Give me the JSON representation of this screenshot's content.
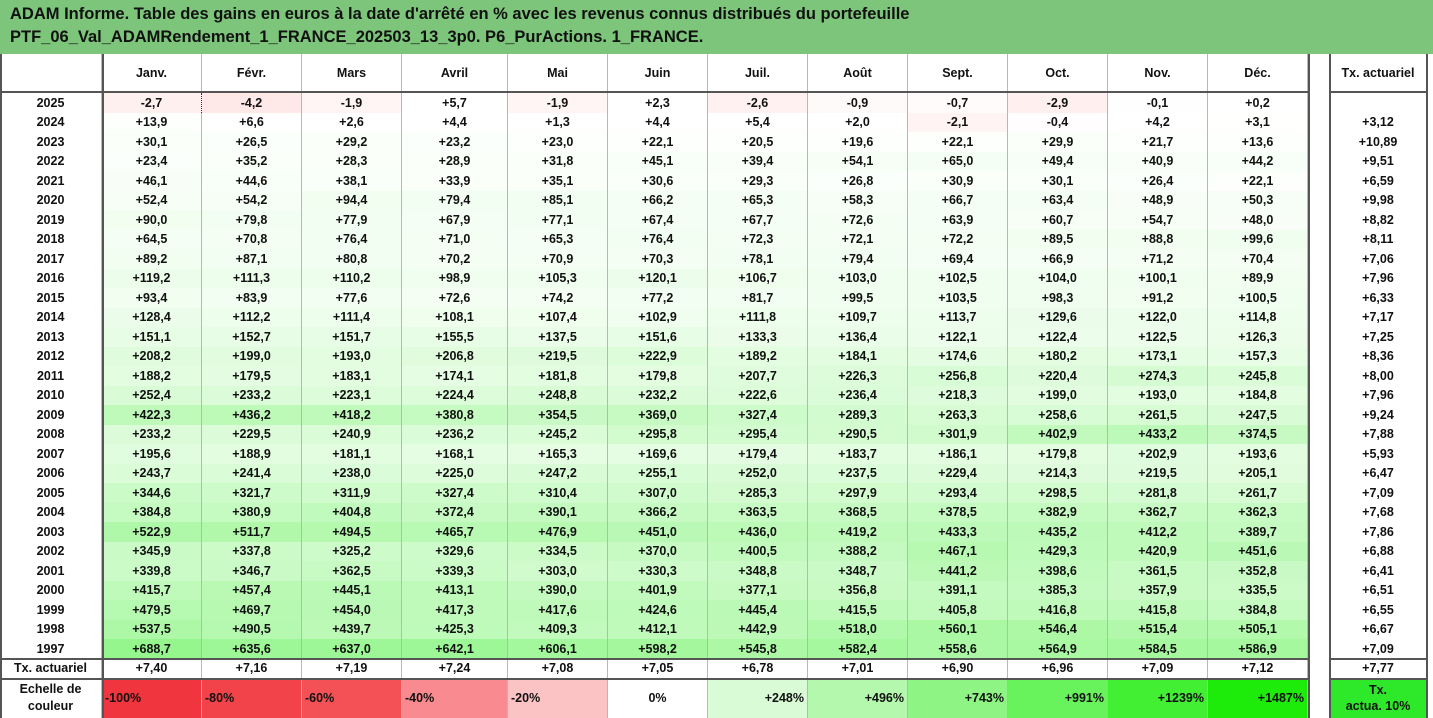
{
  "title": {
    "line1": "ADAM Informe. Table des gains en euros à la date d'arrêté en % avec les revenus connus distribués du portefeuille",
    "line2": "PTF_06_Val_ADAMRendement_1_FRANCE_202503_13_3p0. P6_PurActions. 1_FRANCE."
  },
  "months": [
    "Janv.",
    "Févr.",
    "Mars",
    "Avril",
    "Mai",
    "Juin",
    "Juil.",
    "Août",
    "Sept.",
    "Oct.",
    "Nov.",
    "Déc."
  ],
  "actuarial_header": "Tx. actuariel",
  "rows": [
    {
      "year": "2025",
      "values": [
        "-2,7",
        "-4,2",
        "-1,9",
        "+5,7",
        "-1,9",
        "+2,3",
        "-2,6",
        "-0,9",
        "-0,7",
        "-2,9",
        "-0,1",
        "+0,2"
      ],
      "rate": ""
    },
    {
      "year": "2024",
      "values": [
        "+13,9",
        "+6,6",
        "+2,6",
        "+4,4",
        "+1,3",
        "+4,4",
        "+5,4",
        "+2,0",
        "-2,1",
        "-0,4",
        "+4,2",
        "+3,1"
      ],
      "rate": "+3,12"
    },
    {
      "year": "2023",
      "values": [
        "+30,1",
        "+26,5",
        "+29,2",
        "+23,2",
        "+23,0",
        "+22,1",
        "+20,5",
        "+19,6",
        "+22,1",
        "+29,9",
        "+21,7",
        "+13,6"
      ],
      "rate": "+10,89"
    },
    {
      "year": "2022",
      "values": [
        "+23,4",
        "+35,2",
        "+28,3",
        "+28,9",
        "+31,8",
        "+45,1",
        "+39,4",
        "+54,1",
        "+65,0",
        "+49,4",
        "+40,9",
        "+44,2"
      ],
      "rate": "+9,51"
    },
    {
      "year": "2021",
      "values": [
        "+46,1",
        "+44,6",
        "+38,1",
        "+33,9",
        "+35,1",
        "+30,6",
        "+29,3",
        "+26,8",
        "+30,9",
        "+30,1",
        "+26,4",
        "+22,1"
      ],
      "rate": "+6,59"
    },
    {
      "year": "2020",
      "values": [
        "+52,4",
        "+54,2",
        "+94,4",
        "+79,4",
        "+85,1",
        "+66,2",
        "+65,3",
        "+58,3",
        "+66,7",
        "+63,4",
        "+48,9",
        "+50,3"
      ],
      "rate": "+9,98"
    },
    {
      "year": "2019",
      "values": [
        "+90,0",
        "+79,8",
        "+77,9",
        "+67,9",
        "+77,1",
        "+67,4",
        "+67,7",
        "+72,6",
        "+63,9",
        "+60,7",
        "+54,7",
        "+48,0"
      ],
      "rate": "+8,82"
    },
    {
      "year": "2018",
      "values": [
        "+64,5",
        "+70,8",
        "+76,4",
        "+71,0",
        "+65,3",
        "+76,4",
        "+72,3",
        "+72,1",
        "+72,2",
        "+89,5",
        "+88,8",
        "+99,6"
      ],
      "rate": "+8,11"
    },
    {
      "year": "2017",
      "values": [
        "+89,2",
        "+87,1",
        "+80,8",
        "+70,2",
        "+70,9",
        "+70,3",
        "+78,1",
        "+79,4",
        "+69,4",
        "+66,9",
        "+71,2",
        "+70,4"
      ],
      "rate": "+7,06"
    },
    {
      "year": "2016",
      "values": [
        "+119,2",
        "+111,3",
        "+110,2",
        "+98,9",
        "+105,3",
        "+120,1",
        "+106,7",
        "+103,0",
        "+102,5",
        "+104,0",
        "+100,1",
        "+89,9"
      ],
      "rate": "+7,96"
    },
    {
      "year": "2015",
      "values": [
        "+93,4",
        "+83,9",
        "+77,6",
        "+72,6",
        "+74,2",
        "+77,2",
        "+81,7",
        "+99,5",
        "+103,5",
        "+98,3",
        "+91,2",
        "+100,5"
      ],
      "rate": "+6,33"
    },
    {
      "year": "2014",
      "values": [
        "+128,4",
        "+112,2",
        "+111,4",
        "+108,1",
        "+107,4",
        "+102,9",
        "+111,8",
        "+109,7",
        "+113,7",
        "+129,6",
        "+122,0",
        "+114,8"
      ],
      "rate": "+7,17"
    },
    {
      "year": "2013",
      "values": [
        "+151,1",
        "+152,7",
        "+151,7",
        "+155,5",
        "+137,5",
        "+151,6",
        "+133,3",
        "+136,4",
        "+122,1",
        "+122,4",
        "+122,5",
        "+126,3"
      ],
      "rate": "+7,25"
    },
    {
      "year": "2012",
      "values": [
        "+208,2",
        "+199,0",
        "+193,0",
        "+206,8",
        "+219,5",
        "+222,9",
        "+189,2",
        "+184,1",
        "+174,6",
        "+180,2",
        "+173,1",
        "+157,3"
      ],
      "rate": "+8,36"
    },
    {
      "year": "2011",
      "values": [
        "+188,2",
        "+179,5",
        "+183,1",
        "+174,1",
        "+181,8",
        "+179,8",
        "+207,7",
        "+226,3",
        "+256,8",
        "+220,4",
        "+274,3",
        "+245,8"
      ],
      "rate": "+8,00"
    },
    {
      "year": "2010",
      "values": [
        "+252,4",
        "+233,2",
        "+223,1",
        "+224,4",
        "+248,8",
        "+232,2",
        "+222,6",
        "+236,4",
        "+218,3",
        "+199,0",
        "+193,0",
        "+184,8"
      ],
      "rate": "+7,96"
    },
    {
      "year": "2009",
      "values": [
        "+422,3",
        "+436,2",
        "+418,2",
        "+380,8",
        "+354,5",
        "+369,0",
        "+327,4",
        "+289,3",
        "+263,3",
        "+258,6",
        "+261,5",
        "+247,5"
      ],
      "rate": "+9,24"
    },
    {
      "year": "2008",
      "values": [
        "+233,2",
        "+229,5",
        "+240,9",
        "+236,2",
        "+245,2",
        "+295,8",
        "+295,4",
        "+290,5",
        "+301,9",
        "+402,9",
        "+433,2",
        "+374,5"
      ],
      "rate": "+7,88"
    },
    {
      "year": "2007",
      "values": [
        "+195,6",
        "+188,9",
        "+181,1",
        "+168,1",
        "+165,3",
        "+169,6",
        "+179,4",
        "+183,7",
        "+186,1",
        "+179,8",
        "+202,9",
        "+193,6"
      ],
      "rate": "+5,93"
    },
    {
      "year": "2006",
      "values": [
        "+243,7",
        "+241,4",
        "+238,0",
        "+225,0",
        "+247,2",
        "+255,1",
        "+252,0",
        "+237,5",
        "+229,4",
        "+214,3",
        "+219,5",
        "+205,1"
      ],
      "rate": "+6,47"
    },
    {
      "year": "2005",
      "values": [
        "+344,6",
        "+321,7",
        "+311,9",
        "+327,4",
        "+310,4",
        "+307,0",
        "+285,3",
        "+297,9",
        "+293,4",
        "+298,5",
        "+281,8",
        "+261,7"
      ],
      "rate": "+7,09"
    },
    {
      "year": "2004",
      "values": [
        "+384,8",
        "+380,9",
        "+404,8",
        "+372,4",
        "+390,1",
        "+366,2",
        "+363,5",
        "+368,5",
        "+378,5",
        "+382,9",
        "+362,7",
        "+362,3"
      ],
      "rate": "+7,68"
    },
    {
      "year": "2003",
      "values": [
        "+522,9",
        "+511,7",
        "+494,5",
        "+465,7",
        "+476,9",
        "+451,0",
        "+436,0",
        "+419,2",
        "+433,3",
        "+435,2",
        "+412,2",
        "+389,7"
      ],
      "rate": "+7,86"
    },
    {
      "year": "2002",
      "values": [
        "+345,9",
        "+337,8",
        "+325,2",
        "+329,6",
        "+334,5",
        "+370,0",
        "+400,5",
        "+388,2",
        "+467,1",
        "+429,3",
        "+420,9",
        "+451,6"
      ],
      "rate": "+6,88"
    },
    {
      "year": "2001",
      "values": [
        "+339,8",
        "+346,7",
        "+362,5",
        "+339,3",
        "+303,0",
        "+330,3",
        "+348,8",
        "+348,7",
        "+441,2",
        "+398,6",
        "+361,5",
        "+352,8"
      ],
      "rate": "+6,41"
    },
    {
      "year": "2000",
      "values": [
        "+415,7",
        "+457,4",
        "+445,1",
        "+413,1",
        "+390,0",
        "+401,9",
        "+377,1",
        "+356,8",
        "+391,1",
        "+385,3",
        "+357,9",
        "+335,5"
      ],
      "rate": "+6,51"
    },
    {
      "year": "1999",
      "values": [
        "+479,5",
        "+469,7",
        "+454,0",
        "+417,3",
        "+417,6",
        "+424,6",
        "+445,4",
        "+415,5",
        "+405,8",
        "+416,8",
        "+415,8",
        "+384,8"
      ],
      "rate": "+6,55"
    },
    {
      "year": "1998",
      "values": [
        "+537,5",
        "+490,5",
        "+439,7",
        "+425,3",
        "+409,3",
        "+412,1",
        "+442,9",
        "+518,0",
        "+560,1",
        "+546,4",
        "+515,4",
        "+505,1"
      ],
      "rate": "+6,67"
    },
    {
      "year": "1997",
      "values": [
        "+688,7",
        "+635,6",
        "+637,0",
        "+642,1",
        "+606,1",
        "+598,2",
        "+545,8",
        "+582,4",
        "+558,6",
        "+564,9",
        "+584,5",
        "+586,9"
      ],
      "rate": "+7,09"
    }
  ],
  "summary": {
    "label": "Tx. actuariel",
    "values": [
      "+7,40",
      "+7,16",
      "+7,19",
      "+7,24",
      "+7,08",
      "+7,05",
      "+6,78",
      "+7,01",
      "+6,90",
      "+6,96",
      "+7,09",
      "+7,12"
    ],
    "rate": "+7,77"
  },
  "scale": {
    "label_line1": "Echelle de",
    "label_line2": "couleur",
    "items": [
      {
        "label": "-100%",
        "color": "#f0353e",
        "align": "left"
      },
      {
        "label": "-80%",
        "color": "#f2434a",
        "align": "left"
      },
      {
        "label": "-60%",
        "color": "#f45157",
        "align": "left"
      },
      {
        "label": "-40%",
        "color": "#f98a8f",
        "align": "left"
      },
      {
        "label": "-20%",
        "color": "#fcc3c5",
        "align": "left"
      },
      {
        "label": "0%",
        "color": "#ffffff",
        "align": "center"
      },
      {
        "label": "+248%",
        "color": "#d9fcd6",
        "align": "right"
      },
      {
        "label": "+496%",
        "color": "#b3f8ad",
        "align": "right"
      },
      {
        "label": "+743%",
        "color": "#8ef585",
        "align": "right"
      },
      {
        "label": "+991%",
        "color": "#68f25c",
        "align": "right"
      },
      {
        "label": "+1239%",
        "color": "#42ef33",
        "align": "right"
      },
      {
        "label": "+1487%",
        "color": "#1dec0b",
        "align": "right"
      }
    ],
    "rate_line1": "Tx.",
    "rate_line2": "actua. 10%",
    "rate_color": "#2ee82a"
  }
}
